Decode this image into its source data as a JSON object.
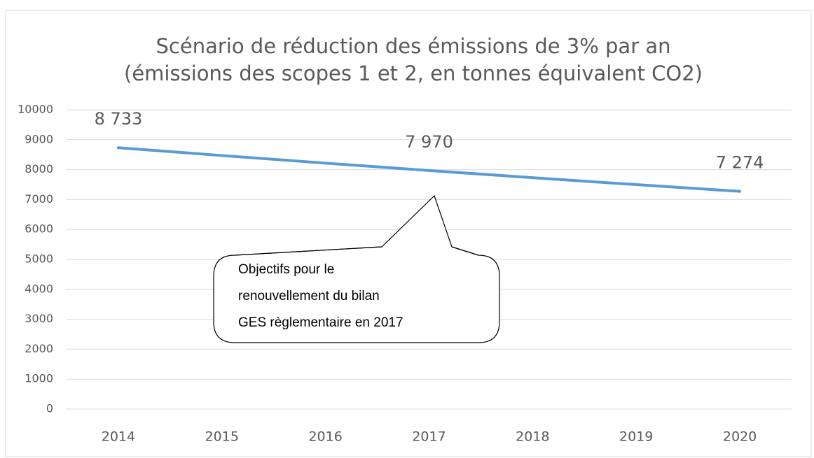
{
  "chart_data": {
    "type": "line",
    "title": "Scénario de réduction des émissions de 3% par an",
    "subtitle": "(émissions des scopes 1 et 2, en tonnes équivalent CO2)",
    "categories": [
      "2014",
      "2015",
      "2016",
      "2017",
      "2018",
      "2019",
      "2020"
    ],
    "values": [
      8733,
      8471,
      8217,
      7970,
      7731,
      7499,
      7274
    ],
    "value_labels": [
      "8 733",
      null,
      null,
      "7 970",
      null,
      null,
      "7 274"
    ],
    "color": "#5b9bd5",
    "ylim": [
      0,
      10000
    ],
    "yticks": [
      0,
      1000,
      2000,
      3000,
      4000,
      5000,
      6000,
      7000,
      8000,
      9000,
      10000
    ],
    "grid": true,
    "annotation": [
      "Objectifs pour le",
      "renouvellement du bilan",
      "GES règlementaire en 2017"
    ]
  }
}
